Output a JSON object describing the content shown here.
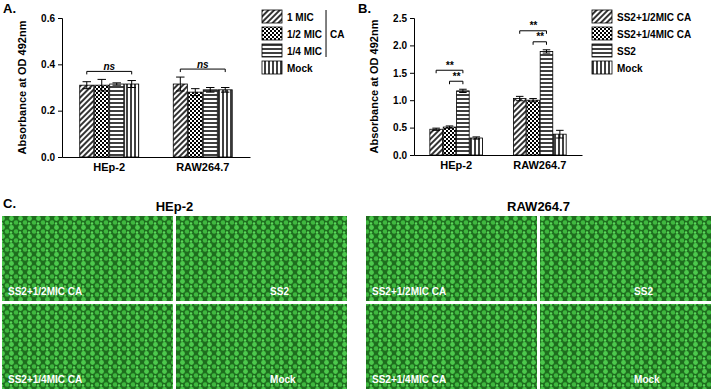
{
  "chart_data": [
    {
      "type": "bar",
      "title": "A.",
      "y_label": "Absorbance at OD 492nm",
      "categories": [
        "HEp-2",
        "RAW264.7"
      ],
      "series": [
        {
          "name": "1 MIC",
          "color": "#000000",
          "values": [
            0.31,
            0.315
          ],
          "errors": [
            0.015,
            0.03
          ]
        },
        {
          "name": "1/2 MIC",
          "color": "#000000",
          "values": [
            0.31,
            0.28
          ],
          "errors": [
            0.025,
            0.015
          ]
        },
        {
          "name": "1/4 MIC",
          "color": "#000000",
          "values": [
            0.315,
            0.29
          ],
          "errors": [
            0.005,
            0.01
          ]
        },
        {
          "name": "Mock",
          "color": "#000000",
          "values": [
            0.315,
            0.29
          ],
          "errors": [
            0.015,
            0.01
          ]
        }
      ],
      "ylim": [
        0,
        0.6
      ],
      "yticks": [
        {
          "value": 0,
          "label": "0.0"
        },
        0.2,
        0.4,
        0.6
      ],
      "legend": "right",
      "legend_note": {
        "text": "CA",
        "series": [
          "1 MIC",
          "1/2 MIC",
          "1/4 MIC"
        ]
      },
      "significance": [
        {
          "category": "HEp-2",
          "series": [
            "1 MIC",
            "Mock"
          ],
          "label": "ns"
        },
        {
          "category": "RAW264.7",
          "series": [
            "1 MIC",
            "Mock"
          ],
          "label": "ns"
        }
      ]
    },
    {
      "type": "bar",
      "title": "B.",
      "y_label": "Absorbance at OD 492nm",
      "categories": [
        "HEp-2",
        "RAW264.7"
      ],
      "series": [
        {
          "name": "SS2+1/2MIC CA",
          "color": "#000000",
          "values": [
            0.47,
            1.03
          ],
          "errors": [
            0.02,
            0.04
          ]
        },
        {
          "name": "SS2+1/4MIC CA",
          "color": "#000000",
          "values": [
            0.51,
            1.0
          ],
          "errors": [
            0.02,
            0.03
          ]
        },
        {
          "name": "SS2",
          "color": "#000000",
          "values": [
            1.17,
            1.89
          ],
          "errors": [
            0.03,
            0.03
          ]
        },
        {
          "name": "Mock",
          "color": "#000000",
          "values": [
            0.31,
            0.38
          ],
          "errors": [
            0.02,
            0.07
          ]
        }
      ],
      "ylim": [
        0,
        2.5
      ],
      "yticks": [
        {
          "value": 0,
          "label": "0.0"
        },
        0.5,
        {
          "value": 1,
          "label": "1.0"
        },
        1.5,
        {
          "value": 2,
          "label": "2.0"
        },
        2.5
      ],
      "legend": "right",
      "significance": [
        {
          "category": "HEp-2",
          "series": [
            "SS2+1/2MIC CA",
            "SS2"
          ],
          "label": "**"
        },
        {
          "category": "HEp-2",
          "series": [
            "SS2+1/4MIC CA",
            "SS2"
          ],
          "label": "**"
        },
        {
          "category": "RAW264.7",
          "series": [
            "SS2+1/2MIC CA",
            "SS2"
          ],
          "label": "**"
        },
        {
          "category": "RAW264.7",
          "series": [
            "SS2+1/4MIC CA",
            "SS2"
          ],
          "label": "**"
        }
      ]
    }
  ],
  "panel_c": {
    "label": "C.",
    "groups": [
      {
        "title": "HEp-2",
        "panels": [
          "SS2+1/2MIC CA",
          "SS2",
          "SS2+1/4MIC CA",
          "Mock"
        ]
      },
      {
        "title": "RAW264.7",
        "panels": [
          "SS2+1/2MIC CA",
          "SS2",
          "SS2+1/4MIC CA",
          "Mock"
        ]
      }
    ]
  }
}
